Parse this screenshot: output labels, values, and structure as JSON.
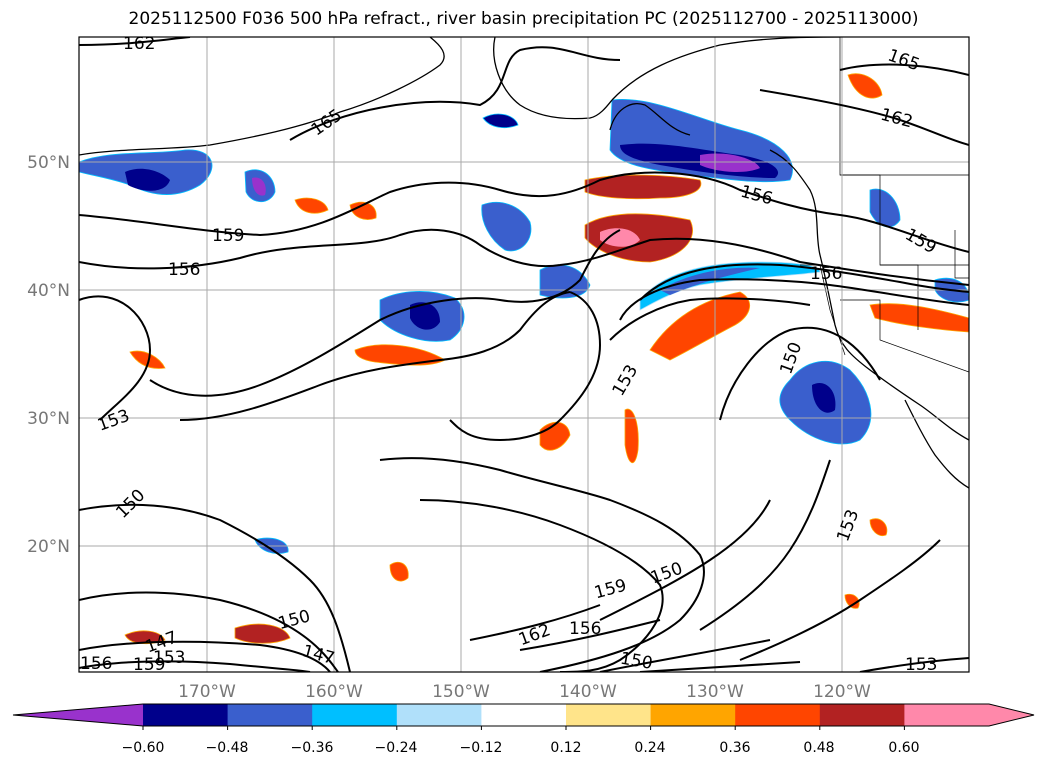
{
  "title": "2025112500 F036 500 hPa refract., river basin precipitation PC (2025112700 - 2025113000)",
  "lat_labels": [
    "50°N",
    "40°N",
    "30°N",
    "20°N"
  ],
  "lon_labels": [
    "170°W",
    "160°W",
    "150°W",
    "140°W",
    "130°W",
    "120°W"
  ],
  "contour_labels": [
    "162",
    "165",
    "159",
    "156",
    "153",
    "150",
    "147",
    "156",
    "159",
    "153",
    "165",
    "162",
    "156",
    "156",
    "159",
    "153",
    "150",
    "153",
    "150",
    "159",
    "156",
    "162",
    "150",
    "147",
    "150",
    "153"
  ],
  "colorbar": {
    "ticks": [
      "−0.60",
      "−0.48",
      "−0.36",
      "−0.24",
      "−0.12",
      "0.12",
      "0.24",
      "0.36",
      "0.48",
      "0.60"
    ],
    "colors": [
      "#9932cc",
      "#00008b",
      "#3a5fcd",
      "#00bfff",
      "#b0e0fa",
      "#ffffff",
      "#ffe48a",
      "#ffa500",
      "#ff4500",
      "#b22222",
      "#ff88aa",
      "#ff88aa"
    ]
  }
}
